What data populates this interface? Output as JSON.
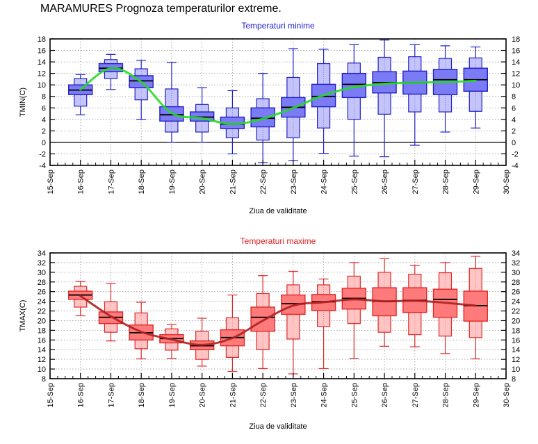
{
  "title": "MARAMURES  Prognoza temperaturilor extreme.",
  "chart_data": [
    {
      "type": "box",
      "title": "Temperaturi minime",
      "title_color": "#2020d0",
      "xlabel": "Ziua de validitate",
      "ylabel": "TMIN(C)",
      "ylim": [
        -4,
        18
      ],
      "yticks": [
        -4,
        -2,
        0,
        2,
        4,
        6,
        8,
        10,
        12,
        14,
        16,
        18
      ],
      "x_tick_labels": [
        "15-Sep",
        "16-Sep",
        "17-Sep",
        "18-Sep",
        "19-Sep",
        "20-Sep",
        "21-Sep",
        "22-Sep",
        "23-Sep",
        "24-Sep",
        "25-Sep",
        "26-Sep",
        "27-Sep",
        "28-Sep",
        "29-Sep",
        "30-Sep"
      ],
      "grid": true,
      "zero_line": true,
      "colors": {
        "box_inner": "#7b7bf5",
        "box_outer": "#c4c4fa",
        "stroke": "#2020c8",
        "mean_line": "#22dd22",
        "median": "#000000"
      },
      "boxes": [
        {
          "day": "16-Sep",
          "min": 4.8,
          "p10": 6.3,
          "p25": 8.3,
          "median": 9.1,
          "p75": 10.0,
          "p90": 11.1,
          "max": 11.8,
          "mean": 9.2
        },
        {
          "day": "17-Sep",
          "min": 9.2,
          "p10": 11.1,
          "p25": 12.3,
          "median": 12.9,
          "p75": 13.7,
          "p90": 14.4,
          "max": 15.3,
          "mean": 12.9
        },
        {
          "day": "18-Sep",
          "min": 4.0,
          "p10": 7.4,
          "p25": 9.5,
          "median": 10.7,
          "p75": 11.6,
          "p90": 12.8,
          "max": 14.3,
          "mean": 10.5
        },
        {
          "day": "19-Sep",
          "min": 0.0,
          "p10": 1.8,
          "p25": 3.7,
          "median": 4.8,
          "p75": 6.2,
          "p90": 9.3,
          "max": 13.9,
          "mean": 5.1
        },
        {
          "day": "20-Sep",
          "min": 0.0,
          "p10": 1.8,
          "p25": 3.7,
          "median": 4.4,
          "p75": 5.3,
          "p90": 6.6,
          "max": 9.5,
          "mean": 4.2
        },
        {
          "day": "21-Sep",
          "min": -2.0,
          "p10": 0.8,
          "p25": 2.4,
          "median": 3.2,
          "p75": 4.4,
          "p90": 6.0,
          "max": 9.0,
          "mean": 3.2
        },
        {
          "day": "22-Sep",
          "min": -3.5,
          "p10": 0.4,
          "p25": 2.7,
          "median": 4.2,
          "p75": 6.0,
          "p90": 7.6,
          "max": 12.0,
          "mean": 4.1
        },
        {
          "day": "23-Sep",
          "min": -3.2,
          "p10": 0.8,
          "p25": 4.4,
          "median": 6.1,
          "p75": 7.8,
          "p90": 11.3,
          "max": 16.3,
          "mean": 6.0
        },
        {
          "day": "24-Sep",
          "min": -1.9,
          "p10": 2.5,
          "p25": 6.2,
          "median": 8.0,
          "p75": 10.1,
          "p90": 13.7,
          "max": 16.2,
          "mean": 8.2
        },
        {
          "day": "25-Sep",
          "min": -2.4,
          "p10": 4.0,
          "p25": 7.8,
          "median": 10.1,
          "p75": 12.0,
          "p90": 13.8,
          "max": 17.0,
          "mean": 9.6
        },
        {
          "day": "26-Sep",
          "min": -2.5,
          "p10": 4.9,
          "p25": 8.6,
          "median": 10.4,
          "p75": 12.3,
          "p90": 14.8,
          "max": 17.8,
          "mean": 10.2
        },
        {
          "day": "27-Sep",
          "min": -0.5,
          "p10": 5.3,
          "p25": 8.4,
          "median": 10.4,
          "p75": 12.4,
          "p90": 14.9,
          "max": 17.0,
          "mean": 10.4
        },
        {
          "day": "28-Sep",
          "min": 1.8,
          "p10": 5.3,
          "p25": 8.3,
          "median": 10.9,
          "p75": 12.7,
          "p90": 14.6,
          "max": 16.8,
          "mean": 10.5
        },
        {
          "day": "29-Sep",
          "min": 2.5,
          "p10": 5.4,
          "p25": 8.9,
          "median": 10.9,
          "p75": 12.9,
          "p90": 14.7,
          "max": 16.6,
          "mean": 10.7
        }
      ]
    },
    {
      "type": "box",
      "title": "Temperaturi maxime",
      "title_color": "#e02020",
      "xlabel": "Ziua de validitate",
      "ylabel": "TMAX(C)",
      "ylim": [
        8,
        34
      ],
      "yticks": [
        8,
        10,
        12,
        14,
        16,
        18,
        20,
        22,
        24,
        26,
        28,
        30,
        32,
        34
      ],
      "x_tick_labels": [
        "15-Sep",
        "16-Sep",
        "17-Sep",
        "18-Sep",
        "19-Sep",
        "20-Sep",
        "21-Sep",
        "22-Sep",
        "23-Sep",
        "24-Sep",
        "25-Sep",
        "26-Sep",
        "27-Sep",
        "28-Sep",
        "29-Sep",
        "30-Sep"
      ],
      "grid": true,
      "zero_line": false,
      "colors": {
        "box_inner": "#ff7b7b",
        "box_outer": "#ffc4c4",
        "stroke": "#e02828",
        "mean_line": "#b02020",
        "median": "#000000"
      },
      "boxes": [
        {
          "day": "16-Sep",
          "min": 21.0,
          "p10": 22.8,
          "p25": 24.4,
          "median": 25.3,
          "p75": 26.1,
          "p90": 27.1,
          "max": 28.1,
          "mean": 25.1
        },
        {
          "day": "17-Sep",
          "min": 15.8,
          "p10": 17.6,
          "p25": 19.4,
          "median": 20.7,
          "p75": 21.8,
          "p90": 23.9,
          "max": 27.7,
          "mean": 20.9
        },
        {
          "day": "18-Sep",
          "min": 12.1,
          "p10": 14.2,
          "p25": 16.0,
          "median": 17.5,
          "p75": 19.1,
          "p90": 21.6,
          "max": 23.8,
          "mean": 17.7
        },
        {
          "day": "19-Sep",
          "min": 12.2,
          "p10": 13.9,
          "p25": 15.4,
          "median": 16.3,
          "p75": 17.1,
          "p90": 18.3,
          "max": 19.2,
          "mean": 16.1
        },
        {
          "day": "20-Sep",
          "min": 10.6,
          "p10": 12.0,
          "p25": 14.0,
          "median": 14.8,
          "p75": 15.8,
          "p90": 17.8,
          "max": 20.5,
          "mean": 15.0
        },
        {
          "day": "21-Sep",
          "min": 9.5,
          "p10": 12.4,
          "p25": 14.8,
          "median": 16.5,
          "p75": 18.1,
          "p90": 20.6,
          "max": 25.3,
          "mean": 16.4
        },
        {
          "day": "22-Sep",
          "min": 10.1,
          "p10": 14.0,
          "p25": 17.8,
          "median": 20.7,
          "p75": 22.8,
          "p90": 25.6,
          "max": 29.3,
          "mean": 20.0
        },
        {
          "day": "23-Sep",
          "min": 9.0,
          "p10": 16.2,
          "p25": 21.3,
          "median": 23.5,
          "p75": 25.3,
          "p90": 27.4,
          "max": 30.2,
          "mean": 23.1
        },
        {
          "day": "24-Sep",
          "min": 10.1,
          "p10": 18.8,
          "p25": 22.1,
          "median": 23.9,
          "p75": 25.4,
          "p90": 27.4,
          "max": 28.6,
          "mean": 23.8
        },
        {
          "day": "25-Sep",
          "min": 12.2,
          "p10": 19.4,
          "p25": 22.4,
          "median": 24.6,
          "p75": 26.7,
          "p90": 29.2,
          "max": 32.0,
          "mean": 24.4
        },
        {
          "day": "26-Sep",
          "min": 14.7,
          "p10": 17.6,
          "p25": 21.0,
          "median": 24.0,
          "p75": 26.8,
          "p90": 30.0,
          "max": 32.8,
          "mean": 24.0
        },
        {
          "day": "27-Sep",
          "min": 14.6,
          "p10": 17.1,
          "p25": 21.7,
          "median": 24.2,
          "p75": 26.8,
          "p90": 29.6,
          "max": 31.4,
          "mean": 24.1
        },
        {
          "day": "28-Sep",
          "min": 13.2,
          "p10": 16.8,
          "p25": 20.7,
          "median": 24.4,
          "p75": 26.5,
          "p90": 29.9,
          "max": 32.0,
          "mean": 23.7
        },
        {
          "day": "29-Sep",
          "min": 12.1,
          "p10": 16.5,
          "p25": 19.9,
          "median": 23.1,
          "p75": 26.1,
          "p90": 30.8,
          "max": 33.3,
          "mean": 23.1
        }
      ]
    }
  ]
}
